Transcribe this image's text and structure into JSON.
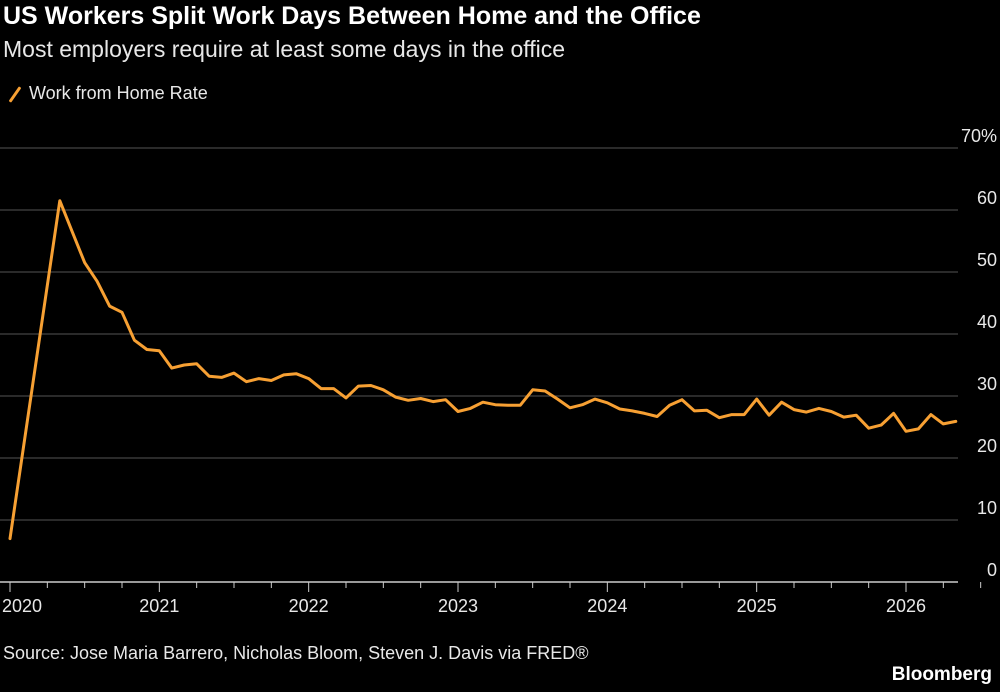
{
  "title": "US Workers Split Work Days Between Home and the Office",
  "subtitle": "Most employers require at least some days in the office",
  "source": "Source: Jose Maria Barrero, Nicholas Bloom, Steven J. Davis via FRED®",
  "brand": "Bloomberg",
  "colors": {
    "line": "#f7a033",
    "grid": "#555555",
    "background": "#000000",
    "text": "#e8e8e8"
  },
  "chart_data": {
    "type": "line",
    "title": "US Workers Split Work Days Between Home and the Office",
    "subtitle": "Most employers require at least some days in the office",
    "legend": "top-left",
    "grid": true,
    "ylim": [
      0,
      70
    ],
    "y_ticks": [
      {
        "value": 70,
        "label": "70%"
      },
      {
        "value": 60,
        "label": "60"
      },
      {
        "value": 50,
        "label": "50"
      },
      {
        "value": 40,
        "label": "40"
      },
      {
        "value": 30,
        "label": "30"
      },
      {
        "value": 20,
        "label": "20"
      },
      {
        "value": 10,
        "label": "10"
      },
      {
        "value": 0,
        "label": "0"
      }
    ],
    "x_ticks": [
      "2020",
      "2021",
      "2022",
      "2023",
      "2024",
      "2025",
      "2026"
    ],
    "series": [
      {
        "name": "Work from Home Rate",
        "x": [
          "2020-01",
          "2020-05",
          "2020-06",
          "2020-07",
          "2020-08",
          "2020-09",
          "2020-10",
          "2020-11",
          "2020-12",
          "2021-01",
          "2021-02",
          "2021-03",
          "2021-04",
          "2021-05",
          "2021-06",
          "2021-07",
          "2021-08",
          "2021-09",
          "2021-10",
          "2021-11",
          "2021-12",
          "2022-01",
          "2022-02",
          "2022-03",
          "2022-04",
          "2022-05",
          "2022-06",
          "2022-07",
          "2022-08",
          "2022-09",
          "2022-10",
          "2022-11",
          "2022-12",
          "2023-01",
          "2023-02",
          "2023-03",
          "2023-04",
          "2023-05",
          "2023-06",
          "2023-07",
          "2023-08",
          "2023-09",
          "2023-10",
          "2023-11",
          "2023-12",
          "2024-01",
          "2024-02",
          "2024-03",
          "2024-04",
          "2024-05",
          "2024-06",
          "2024-07",
          "2024-08",
          "2024-09",
          "2024-10",
          "2024-11",
          "2024-12",
          "2025-01",
          "2025-02",
          "2025-03",
          "2025-04",
          "2025-05",
          "2025-06",
          "2025-07",
          "2025-08",
          "2025-09",
          "2025-10",
          "2025-11",
          "2025-12",
          "2026-01",
          "2026-02",
          "2026-03",
          "2026-04",
          "2026-05"
        ],
        "values": [
          7.0,
          61.5,
          56.5,
          51.5,
          48.5,
          44.5,
          43.5,
          39.0,
          37.5,
          37.3,
          34.5,
          35.0,
          35.2,
          33.2,
          33.0,
          33.7,
          32.3,
          32.8,
          32.5,
          33.4,
          33.6,
          32.8,
          31.2,
          31.2,
          29.7,
          31.6,
          31.7,
          31.0,
          29.8,
          29.3,
          29.6,
          29.1,
          29.4,
          27.5,
          28.0,
          29.0,
          28.6,
          28.5,
          28.5,
          31.0,
          30.8,
          29.5,
          28.1,
          28.6,
          29.5,
          28.9,
          27.9,
          27.6,
          27.2,
          26.7,
          28.5,
          29.4,
          27.6,
          27.7,
          26.5,
          27.0,
          27.0,
          29.5,
          26.9,
          29.0,
          27.8,
          27.4,
          28.0,
          27.5,
          26.6,
          26.9,
          24.8,
          25.3,
          27.2,
          24.3,
          24.7,
          27.0,
          25.5,
          25.9
        ]
      }
    ]
  }
}
